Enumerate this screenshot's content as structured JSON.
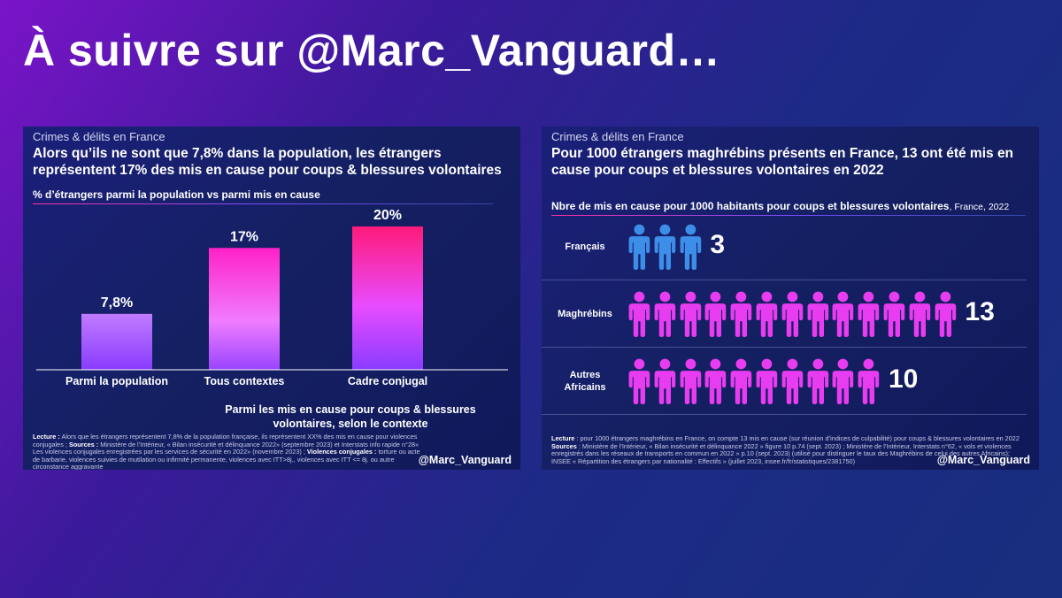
{
  "page_title": "À suivre sur @Marc_Vanguard…",
  "colors": {
    "pink": "#ff1aa0",
    "violet": "#8a3cff",
    "blue_icon": "#3d8ee8",
    "magenta_icon": "#e83cf0"
  },
  "left_card": {
    "kicker": "Crimes & délits en France",
    "headline": "Alors qu’ils ne sont que 7,8% dans la population, les étrangers représentent 17% des mis en cause pour coups & blessures volontaires",
    "subtitle": "% d’étrangers parmi la population vs parmi mis en cause",
    "bracket_label": "Parmi les mis en cause pour coups & blessures volontaires, selon le contexte",
    "footnote": {
      "lecture_label": "Lecture :",
      "lecture_text": " Alors que les étrangers représentent 7,8% de la population française, ils représentent XX% des mis en cause pour violences conjugales ; ",
      "sources_label": "Sources :",
      "sources_text": " Ministère de l’Intérieur, « Bilan insécurité et délinquance 2022» (septembre 2023) et Interstats info rapide n°28« Les violences conjugales enregistrées par les services de sécurité en 2022» (novembre 2023) ; ",
      "violences_label": "Violences conjugales :",
      "violences_text": " torture ou acte de barbarie, violences suivies de mutilation ou infirmité permanente, violences avec ITT>8j., violences avec ITT <= 8j. ou autre circonstance aggravante"
    },
    "handle": "@Marc_Vanguard"
  },
  "right_card": {
    "kicker": "Crimes & délits en France",
    "headline": "Pour 1000 étrangers maghrébins présents en France, 13 ont été mis en cause pour coups et blessures volontaires en 2022",
    "subtitle": "Nbre de mis en cause pour 1000 habitants pour coups et blessures volontaires",
    "subtitle_unit": ", France, 2022",
    "footnote": {
      "lecture_label": "Lecture",
      "lecture_text": " : pour 1000 étrangers maghrébins en France, on compte 13 mis en cause (sur réunion d’indices de culpabilité) pour coups & blessures volontaires en 2022",
      "sources_label": "Sources",
      "sources_text": " : Ministère de l’Intérieur, « Bilan insécurité et délinquance 2022 » figure 10 p.74 (sept. 2023) ; Ministère de l’Intérieur, Interstats n°62, « vols et violences enregistrés dans les réseaux de transports en commun en 2022 » p.10 (sept. 2023) (utilisé pour distinguer le taux des Maghrébins de celui des autres Africains); INSEE « Répartition des étrangers par nationalité : Effectifs » (juillet 2023, insee.fr/fr/statistiques/2381750)"
    },
    "handle": "@Marc_Vanguard"
  },
  "chart_data": [
    {
      "type": "bar",
      "title": "% d’étrangers parmi la population vs parmi mis en cause",
      "categories": [
        "Parmi la population",
        "Tous contextes",
        "Cadre conjugal"
      ],
      "values": [
        7.8,
        17,
        20
      ],
      "value_labels": [
        "7,8%",
        "17%",
        "20%"
      ],
      "ylim": [
        0,
        20
      ],
      "grid": false,
      "legend": "none"
    },
    {
      "type": "bar",
      "title": "Nbre de mis en cause pour 1000 habitants pour coups et blessures volontaires",
      "categories": [
        "Français",
        "Maghrébins",
        "Autres Africains"
      ],
      "values": [
        3,
        13,
        10
      ],
      "value_labels": [
        "3",
        "13",
        "10"
      ],
      "category_lines": [
        [
          "Français"
        ],
        [
          "Maghrébins"
        ],
        [
          "Autres",
          "Africains"
        ]
      ],
      "icon": "person-icon",
      "icon_colors": [
        "blue_icon",
        "magenta_icon",
        "magenta_icon"
      ]
    }
  ]
}
